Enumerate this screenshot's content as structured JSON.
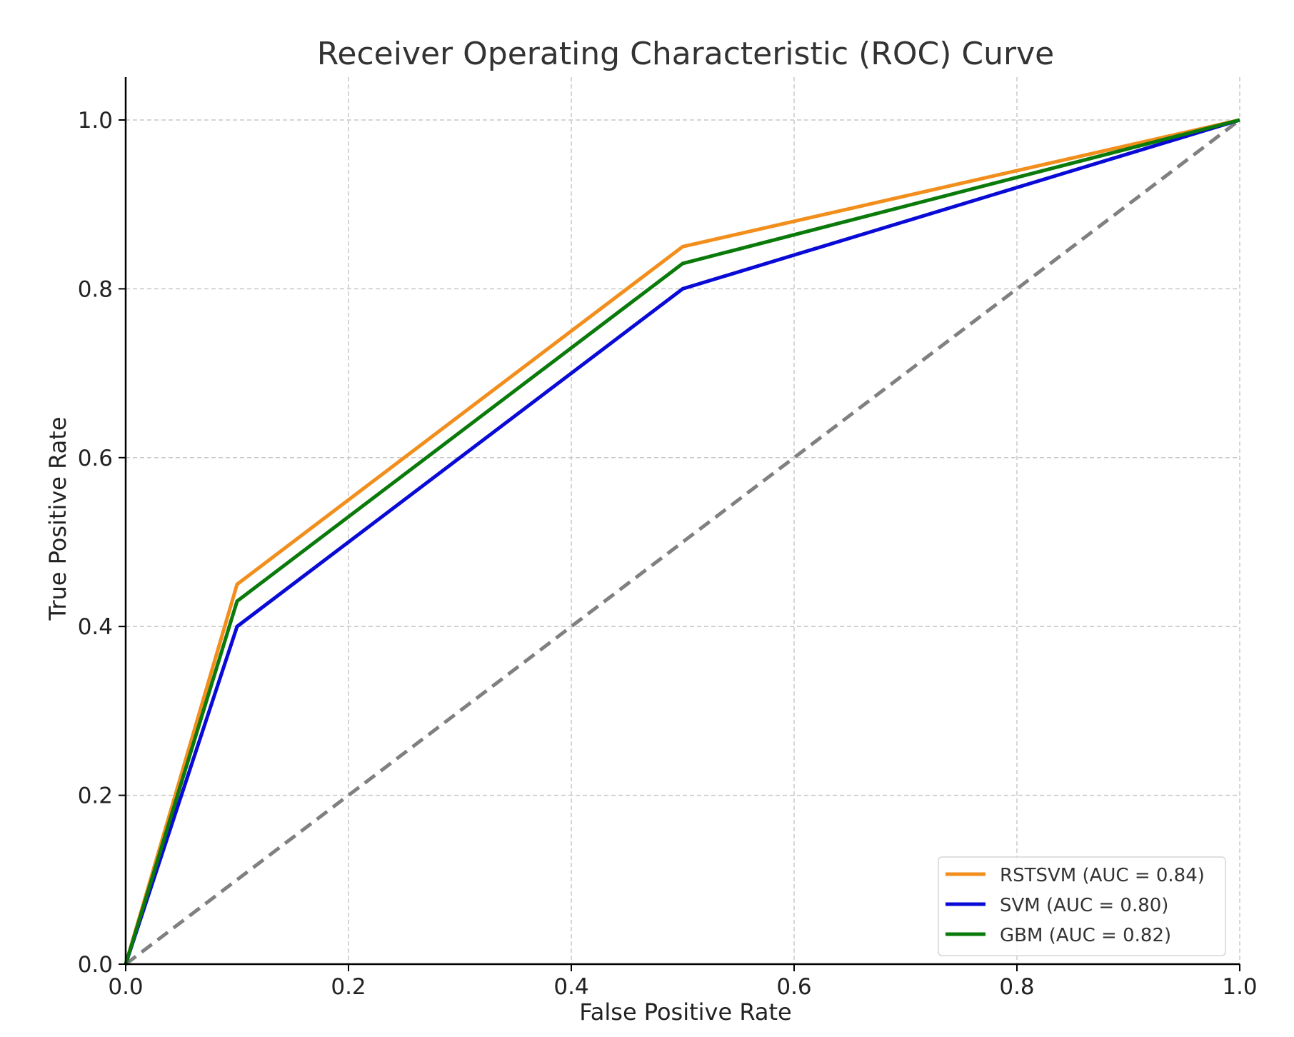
{
  "chart_data": {
    "type": "line",
    "title": "Receiver Operating Characteristic (ROC) Curve",
    "xlabel": "False Positive Rate",
    "ylabel": "True Positive Rate",
    "xlim": [
      0.0,
      1.0
    ],
    "ylim": [
      0.0,
      1.0
    ],
    "xticks": [
      "0.0",
      "0.2",
      "0.4",
      "0.6",
      "0.8",
      "1.0"
    ],
    "yticks": [
      "0.0",
      "0.2",
      "0.4",
      "0.6",
      "0.8",
      "1.0"
    ],
    "grid": true,
    "grid_style": "dashed",
    "legend_position": "bottom-right",
    "series": [
      {
        "name": "RSTSVM (AUC = 0.84)",
        "color": "#f28e1c",
        "x": [
          0.0,
          0.1,
          0.5,
          1.0
        ],
        "y": [
          0.0,
          0.45,
          0.85,
          1.0
        ]
      },
      {
        "name": "SVM (AUC = 0.80)",
        "color": "#0a0ad6",
        "x": [
          0.0,
          0.1,
          0.5,
          1.0
        ],
        "y": [
          0.0,
          0.4,
          0.8,
          1.0
        ]
      },
      {
        "name": "GBM (AUC = 0.82)",
        "color": "#0a7a0a",
        "x": [
          0.0,
          0.1,
          0.5,
          1.0
        ],
        "y": [
          0.0,
          0.43,
          0.83,
          1.0
        ]
      }
    ],
    "reference_line": {
      "color": "#808080",
      "style": "dashed",
      "x": [
        0.0,
        1.0
      ],
      "y": [
        0.0,
        1.0
      ]
    }
  }
}
